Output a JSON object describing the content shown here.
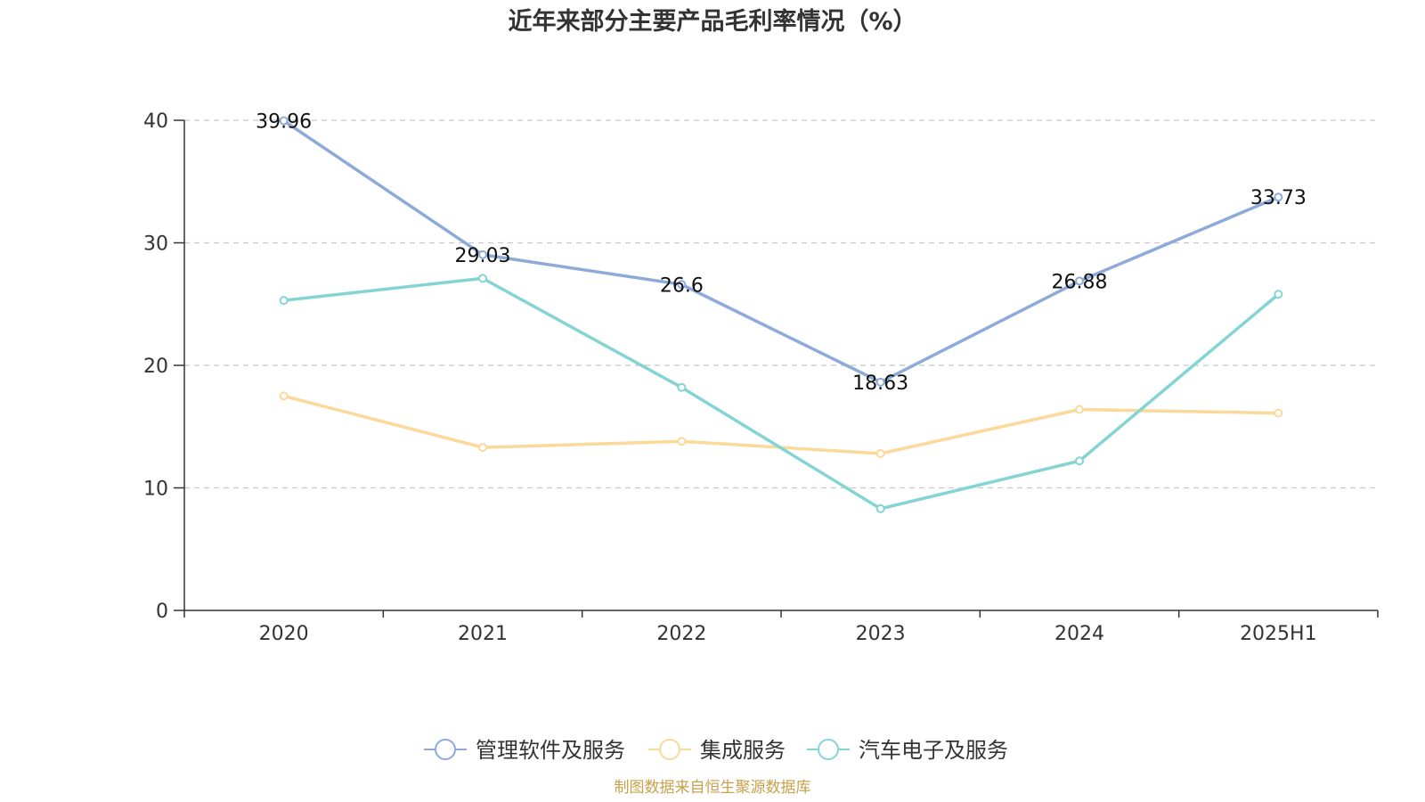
{
  "chart_data": {
    "type": "line",
    "title": "近年来部分主要产品毛利率情况（%）",
    "xlabel": "",
    "ylabel": "",
    "categories": [
      "2020",
      "2021",
      "2022",
      "2023",
      "2024",
      "2025H1"
    ],
    "ylim": [
      0,
      40
    ],
    "yticks": [
      0,
      10,
      20,
      30,
      40
    ],
    "grid": true,
    "legend_position": "bottom",
    "series": [
      {
        "name": "管理软件及服务",
        "color": "#8eaad9",
        "values": [
          39.96,
          29.03,
          26.6,
          18.63,
          26.88,
          33.73
        ],
        "labels": [
          "39.96",
          "29.03",
          "26.6",
          "18.63",
          "26.88",
          "33.73"
        ]
      },
      {
        "name": "集成服务",
        "color": "#fad99a",
        "values": [
          17.5,
          13.3,
          13.8,
          12.8,
          16.4,
          16.1
        ]
      },
      {
        "name": "汽车电子及服务",
        "color": "#85d4d4",
        "values": [
          25.3,
          27.1,
          18.2,
          8.3,
          12.2,
          25.8
        ]
      }
    ]
  },
  "source_text": "制图数据来自恒生聚源数据库",
  "source_color": "#c9a04b"
}
